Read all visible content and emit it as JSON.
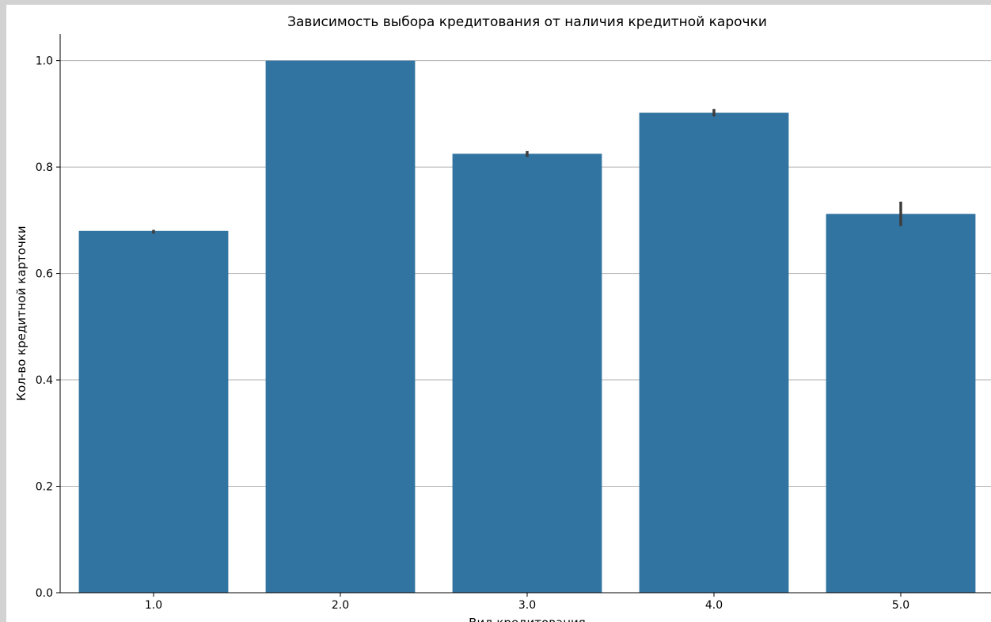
{
  "chart_data": {
    "type": "bar",
    "title": "Зависимость выбора кредитования от наличия кредитной карочки",
    "xlabel": "Вид кредитования",
    "ylabel": "Кол-во кредитной карточки",
    "categories": [
      "1.0",
      "2.0",
      "3.0",
      "4.0",
      "5.0"
    ],
    "values": [
      0.68,
      1.0,
      0.825,
      0.902,
      0.712
    ],
    "error_low": [
      0.675,
      1.0,
      0.819,
      0.895,
      0.689
    ],
    "error_high": [
      0.682,
      1.0,
      0.83,
      0.909,
      0.735
    ],
    "ylim": [
      0,
      1.05
    ],
    "yticks": [
      0.0,
      0.2,
      0.4,
      0.6,
      0.8,
      1.0
    ],
    "ytick_labels": [
      "0.0",
      "0.2",
      "0.4",
      "0.6",
      "0.8",
      "1.0"
    ],
    "grid": "horizontal",
    "colors": {
      "bar": "#3274a1",
      "errorbar": "#3d3d3d",
      "grid": "#b0b0b0",
      "axis": "#000000"
    }
  }
}
